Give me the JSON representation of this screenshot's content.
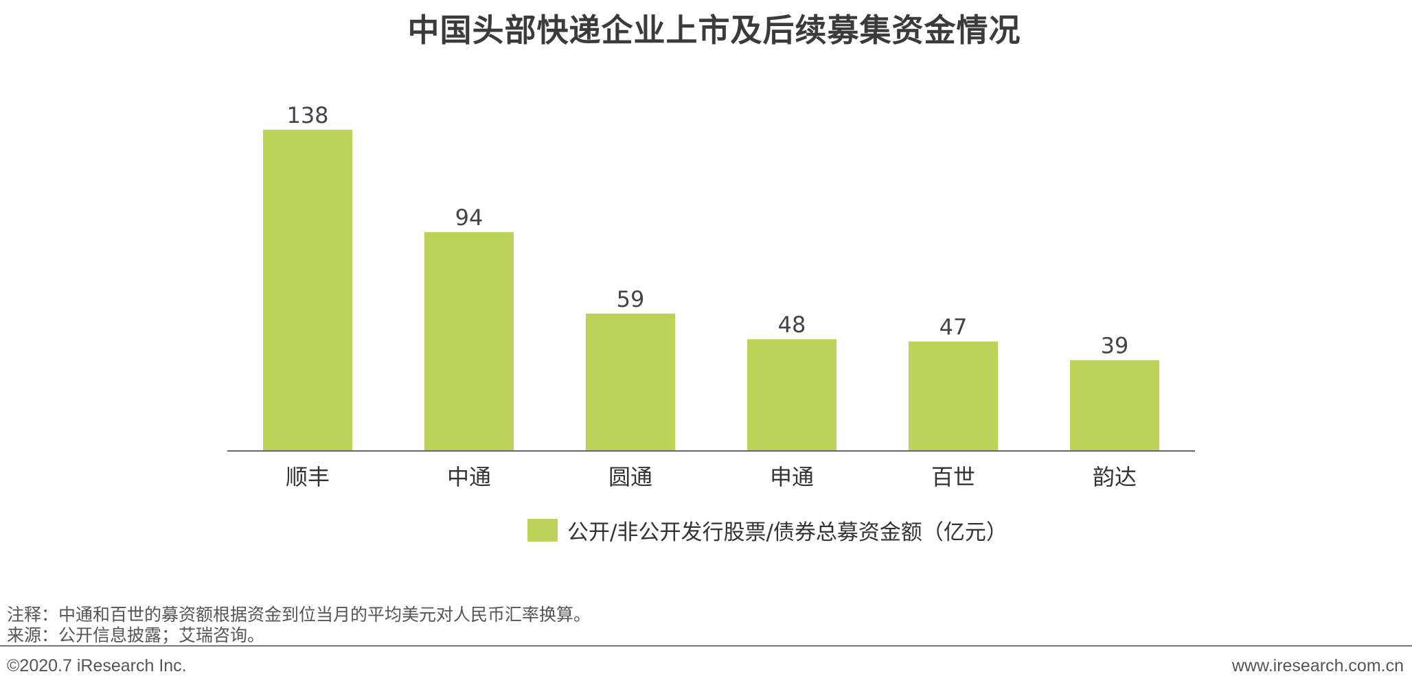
{
  "chart_data": {
    "type": "bar",
    "title": "中国头部快递企业上市及后续募集资金情况",
    "categories": [
      "顺丰",
      "中通",
      "圆通",
      "申通",
      "百世",
      "韵达"
    ],
    "series": [
      {
        "name": "公开/非公开发行股票/债券总募资金额（亿元）",
        "values": [
          138,
          94,
          59,
          48,
          47,
          39
        ]
      }
    ],
    "data_labels": [
      "138",
      "94",
      "59",
      "48",
      "47",
      "39"
    ],
    "ylim": [
      0,
      138
    ],
    "grid": false,
    "y_axis_visible": false,
    "legend_position": "bottom",
    "colors": {
      "bar": "#bcd258",
      "axis": "#666666"
    }
  },
  "notes": {
    "note": "注释：中通和百世的募资额根据资金到位当月的平均美元对人民币汇率换算。",
    "source": "来源：公开信息披露；艾瑞咨询。"
  },
  "footer": {
    "copyright": "©2020.7 iResearch Inc.",
    "website": "www.iresearch.com.cn"
  }
}
